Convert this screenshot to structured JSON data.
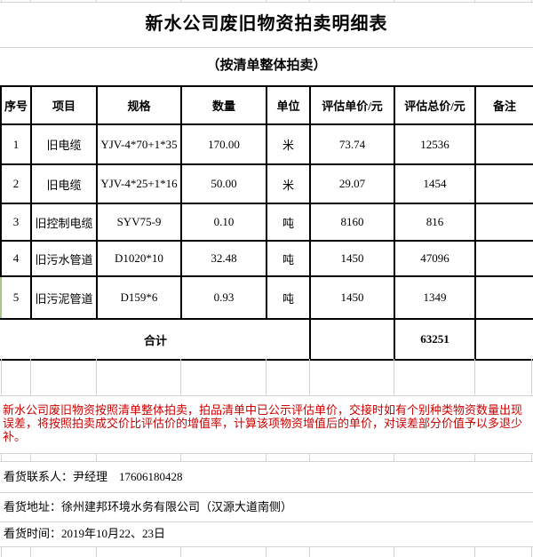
{
  "title": "新水公司废旧物资拍卖明细表",
  "subtitle": "（按清单整体拍卖）",
  "table": {
    "headers": [
      "序号",
      "项目",
      "规格",
      "数量",
      "单位",
      "评估单价/元",
      "评估总价/元",
      "备注"
    ],
    "rows": [
      {
        "no": "1",
        "item": "旧电缆",
        "spec": "YJV-4*70+1*35",
        "qty": "170.00",
        "unit": "米",
        "unit_price": "73.74",
        "total_price": "12536",
        "remark": ""
      },
      {
        "no": "2",
        "item": "旧电缆",
        "spec": "YJV-4*25+1*16",
        "qty": "50.00",
        "unit": "米",
        "unit_price": "29.07",
        "total_price": "1454",
        "remark": ""
      },
      {
        "no": "3",
        "item": "旧控制电缆",
        "spec": "SYV75-9",
        "qty": "0.10",
        "unit": "吨",
        "unit_price": "8160",
        "total_price": "816",
        "remark": ""
      },
      {
        "no": "4",
        "item": "旧污水管道",
        "spec": "D1020*10",
        "qty": "32.48",
        "unit": "吨",
        "unit_price": "1450",
        "total_price": "47096",
        "remark": ""
      },
      {
        "no": "5",
        "item": "旧污泥管道",
        "spec": "D159*6",
        "qty": "0.93",
        "unit": "吨",
        "unit_price": "1450",
        "total_price": "1349",
        "remark": ""
      }
    ],
    "summary": {
      "label": "合计",
      "unit_price": "",
      "total_price": "63251",
      "remark": ""
    }
  },
  "notice": {
    "lines": [
      "新水公司废旧物资按照清单整体拍卖，拍品清单中已公示评估单价，交接时如有个别种类物资数量出现",
      "误差，将按照拍卖成交价比评估价的增值率，计算该项物资增值后的单价，对误差部分价值予以多退少",
      "补。"
    ]
  },
  "footer": {
    "contact": "看货联系人：尹经理　17606180428",
    "address": "看货地址：徐州建邦环境水务有限公司（汉源大道南侧）",
    "time": "看货时间：2019年10月22、23日"
  },
  "colors": {
    "notice_red": "#cc0000",
    "row5_border_green": "#a9c58a",
    "gridline_gray": "#d4d4d4"
  }
}
